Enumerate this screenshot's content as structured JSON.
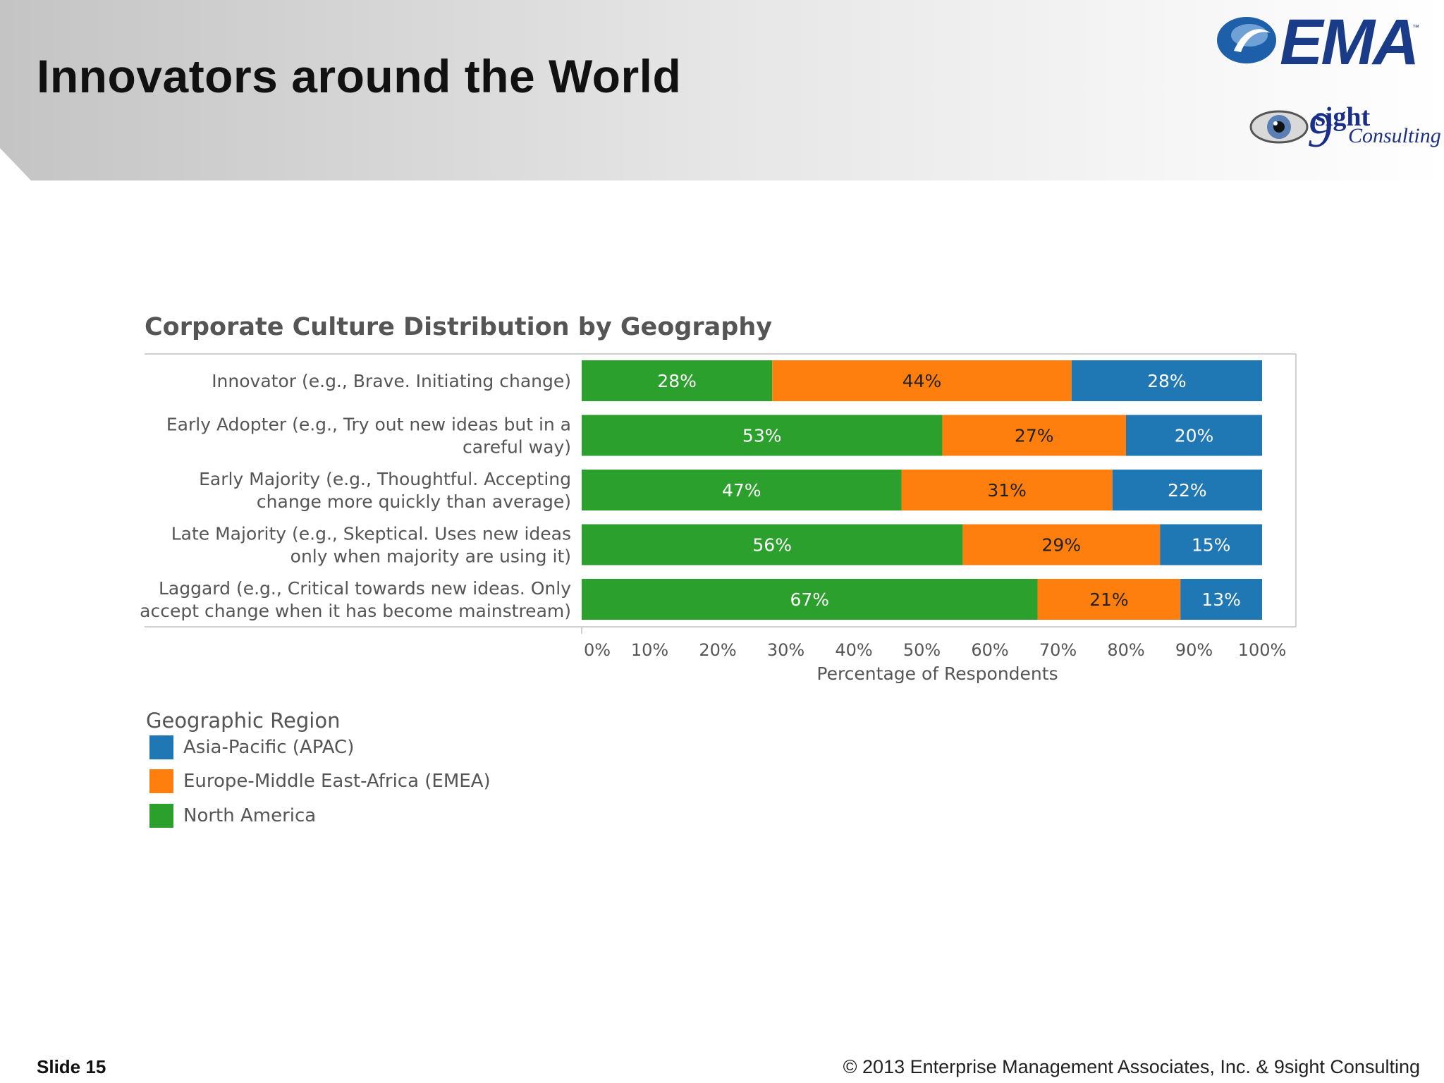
{
  "slide": {
    "title": "Innovators around the World",
    "footer_left": "Slide 15",
    "footer_right": "© 2013 Enterprise Management Associates, Inc. & 9sight Consulting"
  },
  "logos": {
    "ema": {
      "text": "EMA",
      "tm": "™"
    },
    "ninesight": {
      "sight": "sight",
      "consulting": "Consulting"
    }
  },
  "chart_data": {
    "type": "bar",
    "orientation": "horizontal",
    "stacked": true,
    "title": "Corporate Culture Distribution by Geography",
    "xlabel": "Percentage of Respondents",
    "ylabel": "",
    "xlim": [
      0,
      100
    ],
    "x_ticks": [
      "0%",
      "10%",
      "20%",
      "30%",
      "40%",
      "50%",
      "60%",
      "70%",
      "80%",
      "90%",
      "100%"
    ],
    "categories": [
      [
        "Innovator  (e.g., Brave. Initiating change)"
      ],
      [
        "Early Adopter (e.g., Try out new ideas but in a",
        "careful way)"
      ],
      [
        "Early Majority (e.g.,  Thoughtful. Accepting",
        "change more quickly than average)"
      ],
      [
        "Late Majority (e.g.,  Skeptical. Uses new ideas",
        "only when majority are using it)"
      ],
      [
        "Laggard (e.g.,  Critical towards new ideas. Only",
        "accept change when it has become mainstream)"
      ]
    ],
    "series": [
      {
        "name": "North America",
        "color": "#2ca02c",
        "values": [
          28,
          53,
          47,
          56,
          67
        ],
        "labels": [
          "28%",
          "53%",
          "47%",
          "56%",
          "67%"
        ]
      },
      {
        "name": "Europe-Middle East-Africa (EMEA)",
        "color": "#ff7f0e",
        "values": [
          44,
          27,
          31,
          29,
          21
        ],
        "labels": [
          "44%",
          "27%",
          "31%",
          "29%",
          "21%"
        ]
      },
      {
        "name": "Asia-Pacific (APAC)",
        "color": "#1f77b4",
        "values": [
          28,
          20,
          22,
          15,
          13
        ],
        "labels": [
          "28%",
          "20%",
          "22%",
          "15%",
          "13%"
        ]
      }
    ],
    "grid": false,
    "legend": {
      "title": "Geographic Region",
      "position": "bottom-left",
      "items": [
        {
          "label": "Asia-Pacific (APAC)",
          "color": "#1f77b4"
        },
        {
          "label": "Europe-Middle East-Africa (EMEA)",
          "color": "#ff7f0e"
        },
        {
          "label": "North America",
          "color": "#2ca02c"
        }
      ]
    }
  }
}
